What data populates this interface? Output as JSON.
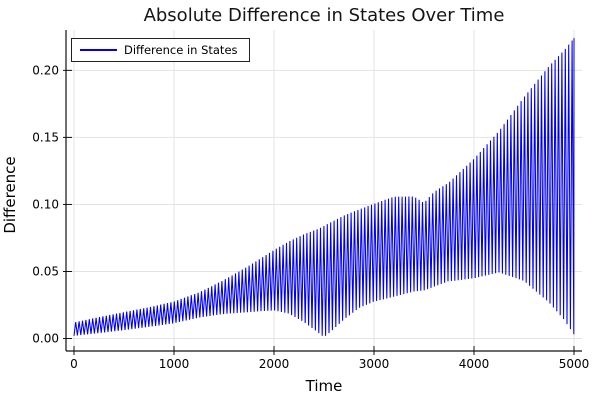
{
  "title": "Absolute Difference in States Over Time",
  "legend": {
    "label": "Difference in States"
  },
  "axes": {
    "x": {
      "label": "Time",
      "tick_labels": [
        "0",
        "1000",
        "2000",
        "3000",
        "4000",
        "5000"
      ],
      "tick_values": [
        0,
        1000,
        2000,
        3000,
        4000,
        5000
      ]
    },
    "y": {
      "label": "Difference",
      "tick_labels": [
        "0.00",
        "0.05",
        "0.10",
        "0.15",
        "0.20"
      ],
      "tick_values": [
        0.0,
        0.05,
        0.1,
        0.15,
        0.2
      ]
    }
  },
  "chart_data": {
    "type": "line",
    "title": "Absolute Difference in States Over Time",
    "xlabel": "Time",
    "ylabel": "Difference",
    "legend_position": "top-left",
    "grid": true,
    "xlim": [
      -80,
      5080
    ],
    "ylim": [
      -0.0093,
      0.2301
    ],
    "series": [
      {
        "name": "Difference in States",
        "color": "#0000f0"
      }
    ],
    "description": "Absolute difference |x1(t)-x2(t)| oscillating rapidly (apparent period ~34 time units) inside slowly varying envelopes; near-zero minima around t=0, a node-like dip near t=2500, an upper-envelope hump ~0.11 near t=3200-3400 with a small notch at ~3500, then steep growth to ~0.224 at t=5000 while the lower envelope falls back toward ~0.003.",
    "envelope": {
      "t": [
        0,
        250,
        500,
        750,
        1000,
        1250,
        1500,
        1750,
        2000,
        2150,
        2300,
        2450,
        2500,
        2550,
        2700,
        2850,
        3000,
        3200,
        3400,
        3500,
        3600,
        3800,
        4000,
        4250,
        4500,
        4750,
        4900,
        5000
      ],
      "upper": [
        0.012,
        0.016,
        0.02,
        0.024,
        0.029,
        0.037,
        0.046,
        0.056,
        0.067,
        0.073,
        0.078,
        0.082,
        0.084,
        0.086,
        0.092,
        0.097,
        0.102,
        0.109,
        0.111,
        0.107,
        0.117,
        0.13,
        0.142,
        0.16,
        0.183,
        0.204,
        0.215,
        0.224
      ],
      "lower": [
        0.002,
        0.004,
        0.006,
        0.008,
        0.01,
        0.013,
        0.016,
        0.018,
        0.02,
        0.018,
        0.012,
        0.004,
        0.001,
        0.004,
        0.014,
        0.022,
        0.026,
        0.028,
        0.03,
        0.03,
        0.031,
        0.033,
        0.037,
        0.044,
        0.04,
        0.026,
        0.014,
        0.003
      ]
    },
    "oscillation": {
      "t_end": 5000,
      "sample_step": 17,
      "n_samples": 294,
      "start_at_lower": true,
      "breath_base": 0.78,
      "breath_span": 0.22,
      "breath_drift_per_sample": 0.021368
    }
  },
  "colors": {
    "series": "#0000f0",
    "grid": "#e3e3e3",
    "spine": "#111111",
    "legend_border": "#222222",
    "background": "#ffffff"
  }
}
